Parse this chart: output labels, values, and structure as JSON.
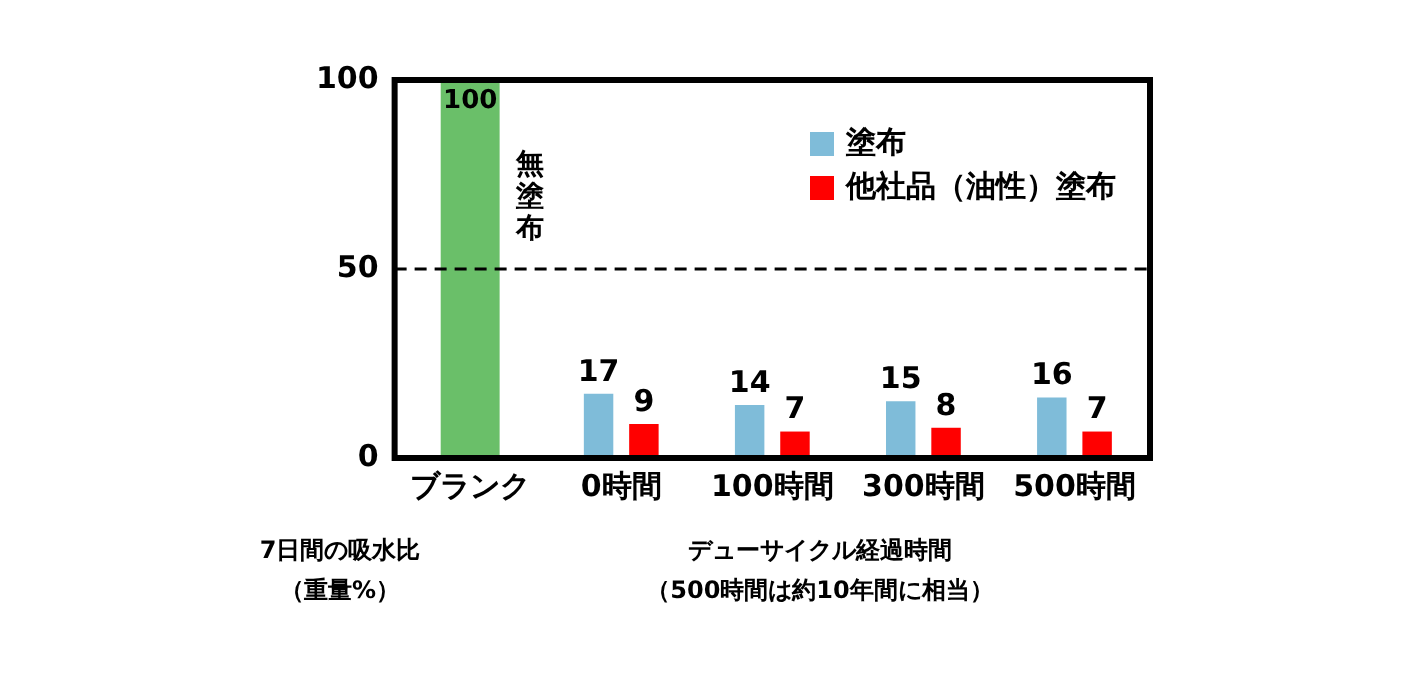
{
  "chart_data": {
    "type": "bar",
    "categories": [
      "ブランク",
      "0時間",
      "100時間",
      "300時間",
      "500時間"
    ],
    "series": [
      {
        "name": "無塗布",
        "color": "#6abf69",
        "values": [
          100,
          null,
          null,
          null,
          null
        ]
      },
      {
        "name": "塗布",
        "color": "#7fbcd9",
        "values": [
          null,
          17,
          14,
          15,
          16
        ]
      },
      {
        "name": "他社品（油性）塗布",
        "color": "#ff0000",
        "values": [
          null,
          9,
          7,
          8,
          7
        ]
      }
    ],
    "ylim": [
      0,
      100
    ],
    "yticks": [
      0,
      50,
      100
    ],
    "grid": false,
    "legend": "top right",
    "data_labels": true,
    "ref_lines": [
      {
        "axis": "y",
        "value": 50,
        "color": "#000000",
        "line_style": "dashed"
      }
    ],
    "ylabel": "7日間の吸水比（重量%）",
    "xlabel": "デューサイクル経過時間（500時間は約10年間に相当）"
  }
}
